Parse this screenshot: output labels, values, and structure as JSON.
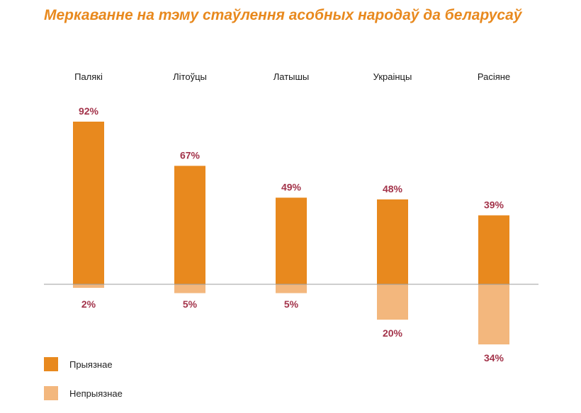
{
  "colors": {
    "title": "#E8891E",
    "positive": "#E8891E",
    "negative": "#F3B77D",
    "label": "#A3334A",
    "axis": "#9E9E9E",
    "category": "#1A1A1A"
  },
  "chart_data": {
    "type": "bar",
    "title": "Меркаванне на тэму стаўлення асобных народаў да беларусаў",
    "categories": [
      "Палякі",
      "Літоўцы",
      "Латышы",
      "Украінцы",
      "Расіяне"
    ],
    "series": [
      {
        "name": "Прыязнае",
        "values": [
          92,
          67,
          49,
          48,
          39
        ],
        "labels": [
          "92%",
          "67%",
          "49%",
          "48%",
          "39%"
        ]
      },
      {
        "name": "Непрыязнае",
        "values": [
          2,
          5,
          5,
          20,
          34
        ],
        "labels": [
          "2%",
          "5%",
          "5%",
          "20%",
          "34%"
        ]
      }
    ],
    "xlabel": "",
    "ylabel": "",
    "legend": "bottom-left",
    "grid": false
  }
}
